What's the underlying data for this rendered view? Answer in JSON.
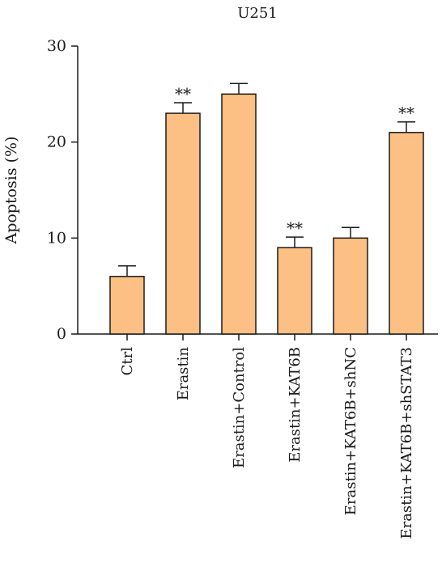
{
  "chart_data": {
    "type": "bar",
    "title": "U251",
    "ylabel": "Apoptosis (%)",
    "xlabel": "",
    "ylim": [
      0,
      30
    ],
    "yticks": [
      0,
      10,
      20,
      30
    ],
    "categories": [
      "Ctrl",
      "Erastin",
      "Erastin+Control",
      "Erastin+KAT6B",
      "Erastin+KAT6B+shNC",
      "Erastin+KAT6B+shSTAT3"
    ],
    "values": [
      6,
      23,
      25,
      9,
      10,
      21
    ],
    "errors": [
      1.1,
      1.1,
      1.1,
      1.1,
      1.1,
      1.1
    ],
    "annotations": [
      "",
      "**",
      "",
      "**",
      "",
      "**"
    ],
    "bar_color": "#FDC084",
    "grid": false,
    "legend": "none"
  }
}
